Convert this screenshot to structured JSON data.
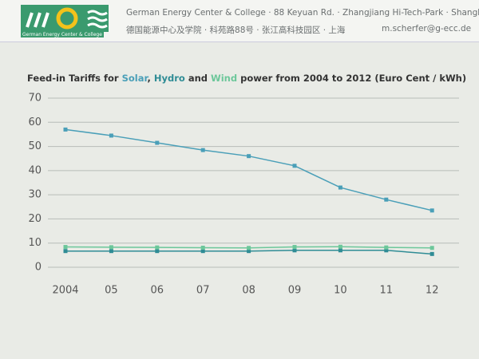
{
  "header": {
    "logo_text": "German Energy Center & College",
    "line1": "German Energy Center & College · 88 Keyuan Rd. · Zhangjiang Hi-Tech-Park · Shanghai",
    "line2": "德国能源中心及学院 · 科苑路88号 · 张江高科技园区 · 上海",
    "email": "m.scherfer@g-ecc.de"
  },
  "chart_data": {
    "type": "line",
    "title_parts": [
      "Feed-in Tariffs for",
      ",",
      "and",
      "power from 2004 to 2012 (Euro Cent / kWh)"
    ],
    "categories": [
      "2004",
      "05",
      "06",
      "07",
      "08",
      "09",
      "10",
      "11",
      "12"
    ],
    "series": [
      {
        "name": "Solar",
        "color": "#4a9fb8",
        "values": [
          57,
          54.5,
          51.5,
          48.5,
          46,
          42,
          33,
          28,
          23.5
        ]
      },
      {
        "name": "Hydro",
        "color": "#2f8c95",
        "values": [
          6.7,
          6.7,
          6.7,
          6.7,
          6.7,
          7,
          7,
          7,
          5.5
        ]
      },
      {
        "name": "Wind",
        "color": "#6cc79a",
        "values": [
          8.4,
          8.3,
          8.2,
          8.1,
          8,
          8.4,
          8.5,
          8.2,
          8
        ]
      }
    ],
    "ylim": [
      0,
      70
    ],
    "yticks": [
      0,
      10,
      20,
      30,
      40,
      50,
      60,
      70
    ],
    "grid": true
  }
}
